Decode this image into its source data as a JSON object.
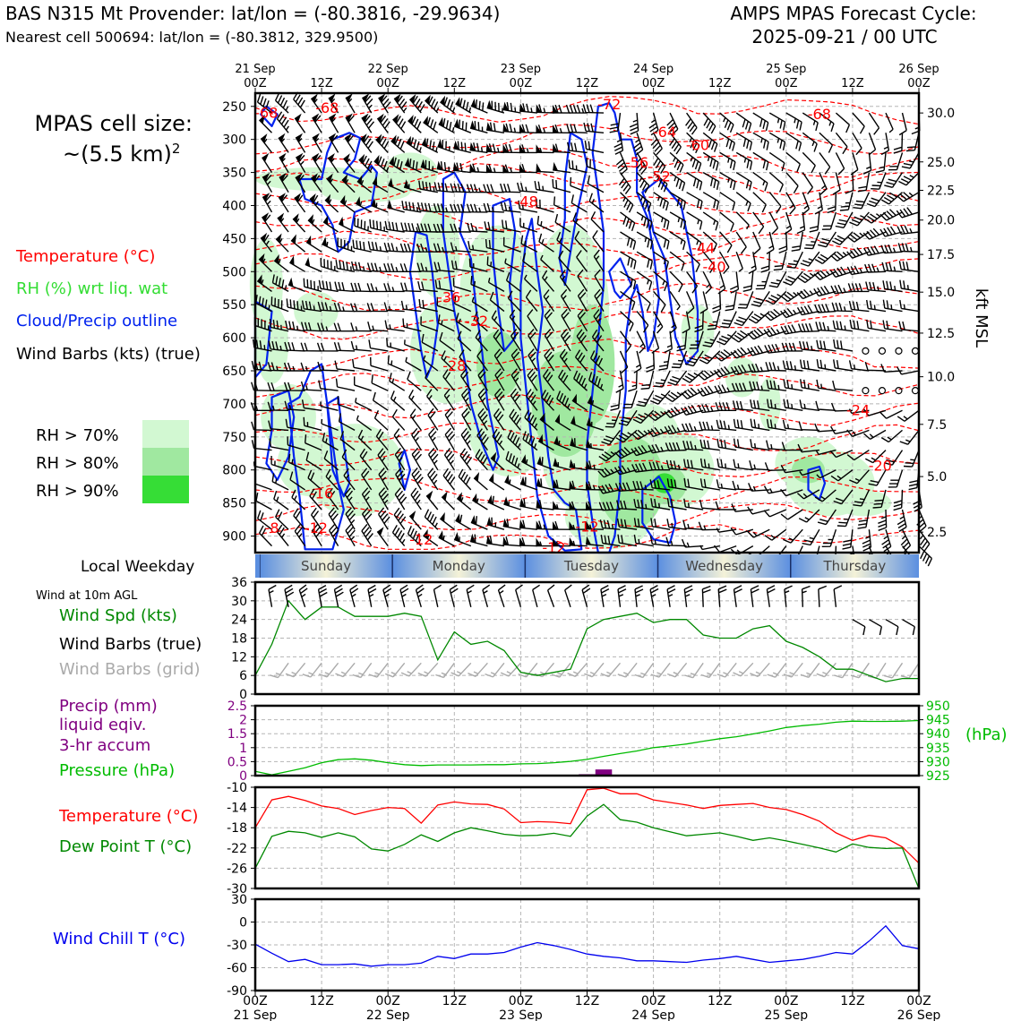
{
  "header": {
    "title_left": "BAS N315 Mt Provender: lat/lon = (-80.3816, -29.9634)",
    "subtitle_left": "Nearest cell 500694: lat/lon = (-80.3812, 329.9500)",
    "title_right_1": "AMPS MPAS Forecast Cycle:",
    "title_right_2": "2025-09-21 / 00 UTC"
  },
  "cell_size": {
    "line1": "MPAS cell size:",
    "line2": "~(5.5 km)",
    "sup": "2"
  },
  "legend_main": {
    "temperature": "Temperature (°C)",
    "rh": "RH (%) wrt liq. wat",
    "cloud": "Cloud/Precip outline",
    "wind": "Wind Barbs (kts) (true)",
    "rh70": "RH > 70%",
    "rh80": "RH > 80%",
    "rh90": "RH > 90%"
  },
  "colors": {
    "temperature": "#ff0000",
    "rh_label": "#33dd33",
    "cloud": "#0022ee",
    "rh70": "#d2f8d2",
    "rh80": "#a0e8a0",
    "rh90": "#36dd36",
    "wind_speed": "#008800",
    "wind_grid": "#aaaaaa",
    "precip": "#800080",
    "pressure": "#00bb00",
    "dewpoint": "#008800",
    "windchill": "#0000ee"
  },
  "time_axis": {
    "top_dates": [
      "21 Sep",
      "22 Sep",
      "23 Sep",
      "24 Sep",
      "25 Sep",
      "26 Sep"
    ],
    "hour_labels": [
      "00Z",
      "12Z",
      "00Z",
      "12Z",
      "00Z",
      "12Z",
      "00Z",
      "12Z",
      "00Z",
      "12Z",
      "00Z"
    ],
    "bottom_dates": [
      "21 Sep",
      "22 Sep",
      "23 Sep",
      "24 Sep",
      "25 Sep",
      "26 Sep"
    ]
  },
  "weekday_bar": {
    "label": "Local Weekday",
    "days": [
      "Sunday",
      "Monday",
      "Tuesday",
      "Wednesday",
      "Thursday"
    ]
  },
  "chart_data": [
    {
      "type": "heatmap",
      "name": "cross-section",
      "yaxis_left": {
        "ticks": [
          250,
          300,
          350,
          400,
          450,
          500,
          550,
          600,
          650,
          700,
          750,
          800,
          850,
          900
        ]
      },
      "yaxis_right": {
        "label": "kft MSL",
        "ticks": [
          "30.0",
          "25.0",
          "22.5",
          "20.0",
          "17.5",
          "15.0",
          "12.5",
          "10.0",
          "7.5",
          "5.0",
          "2.5"
        ],
        "tick_pressure": [
          260,
          334,
          377,
          422,
          474,
          531,
          593,
          659,
          731,
          810,
          894
        ]
      },
      "temperature_labels": [
        {
          "text": "-68",
          "t": 2,
          "p": 259
        },
        {
          "text": "-68",
          "t": 13,
          "p": 252
        },
        {
          "text": "-72",
          "t": 64,
          "p": 246
        },
        {
          "text": "-68",
          "t": 102,
          "p": 261
        },
        {
          "text": "-64",
          "t": 74,
          "p": 288
        },
        {
          "text": "-60",
          "t": 80,
          "p": 308
        },
        {
          "text": "-56",
          "t": 69,
          "p": 334
        },
        {
          "text": "-52",
          "t": 73,
          "p": 355
        },
        {
          "text": "-48",
          "t": 49,
          "p": 393
        },
        {
          "text": "-44",
          "t": 81,
          "p": 464
        },
        {
          "text": "-40",
          "t": 83,
          "p": 492
        },
        {
          "text": "-36",
          "t": 35,
          "p": 538
        },
        {
          "text": "-32",
          "t": 40,
          "p": 574
        },
        {
          "text": "-28",
          "t": 36,
          "p": 642
        },
        {
          "text": "-24",
          "t": 109,
          "p": 709
        },
        {
          "text": "-20",
          "t": 113,
          "p": 793
        },
        {
          "text": "-16",
          "t": 12,
          "p": 835
        },
        {
          "text": "-12",
          "t": 11,
          "p": 887
        },
        {
          "text": "-12",
          "t": 30,
          "p": 905
        },
        {
          "text": "-12",
          "t": 54,
          "p": 917
        },
        {
          "text": "-12",
          "t": 60,
          "p": 885
        },
        {
          "text": "-8",
          "t": 3,
          "p": 887
        }
      ]
    },
    {
      "type": "line",
      "name": "wind",
      "ylim": [
        0,
        36
      ],
      "yticks": [
        0,
        6,
        12,
        18,
        24,
        30,
        36
      ],
      "x": [
        0,
        3,
        6,
        9,
        12,
        15,
        18,
        21,
        24,
        27,
        30,
        33,
        36,
        39,
        42,
        45,
        48,
        51,
        54,
        57,
        60,
        63,
        66,
        69,
        72,
        75,
        78,
        81,
        84,
        87,
        90,
        93,
        96,
        99,
        102,
        105,
        108,
        111,
        114,
        117,
        120
      ],
      "series": [
        {
          "name": "Wind Spd (kts)",
          "values": [
            6,
            16,
            30,
            24,
            28,
            28,
            25,
            25,
            25,
            26,
            25,
            11,
            20,
            16,
            17,
            14,
            7,
            6,
            7,
            8,
            21,
            24,
            25,
            26,
            23,
            24,
            24,
            19,
            18,
            18,
            21,
            22,
            17,
            15,
            12,
            8,
            8,
            6,
            4,
            5,
            5
          ]
        }
      ]
    },
    {
      "type": "bar",
      "name": "precip-pressure",
      "y_left": {
        "ylim": [
          0,
          2.5
        ],
        "ticks": [
          0,
          0.5,
          1.0,
          1.5,
          2.0,
          2.5
        ]
      },
      "y_right": {
        "ylim": [
          925,
          950
        ],
        "ticks": [
          925,
          930,
          935,
          940,
          945,
          950
        ],
        "unit": "(hPa)"
      },
      "precip": {
        "x": [
          63
        ],
        "values": [
          0.22
        ]
      },
      "pressure": {
        "x": [
          0,
          3,
          6,
          9,
          12,
          15,
          18,
          21,
          24,
          27,
          30,
          33,
          36,
          39,
          42,
          45,
          48,
          51,
          54,
          57,
          60,
          63,
          66,
          69,
          72,
          75,
          78,
          81,
          84,
          87,
          90,
          93,
          96,
          99,
          102,
          105,
          108,
          111,
          114,
          117,
          120
        ],
        "values": [
          926.5,
          925.3,
          926.5,
          927.8,
          929.6,
          930.7,
          931.0,
          930.5,
          929.6,
          928.9,
          928.6,
          928.8,
          928.8,
          928.8,
          928.9,
          928.9,
          929.2,
          929.3,
          929.6,
          930.1,
          930.8,
          931.9,
          932.9,
          933.8,
          935.0,
          935.6,
          936.3,
          937.3,
          938.2,
          938.9,
          939.9,
          941.0,
          942.2,
          942.9,
          943.4,
          944.1,
          944.5,
          944.4,
          944.4,
          944.5,
          944.7
        ]
      }
    },
    {
      "type": "line",
      "name": "temperature",
      "ylim": [
        -30,
        -10
      ],
      "yticks": [
        -10,
        -14,
        -18,
        -22,
        -26,
        -30
      ],
      "x": [
        0,
        3,
        6,
        9,
        12,
        15,
        18,
        21,
        24,
        27,
        30,
        33,
        36,
        39,
        42,
        45,
        48,
        51,
        54,
        57,
        60,
        63,
        66,
        69,
        72,
        75,
        78,
        81,
        84,
        87,
        90,
        93,
        96,
        99,
        102,
        105,
        108,
        111,
        114,
        117,
        120
      ],
      "series": [
        {
          "name": "Temperature (°C)",
          "values": [
            -18,
            -12.5,
            -11.8,
            -12.6,
            -13.7,
            -14.2,
            -15.4,
            -14.6,
            -14.0,
            -14.2,
            -17.1,
            -13.5,
            -12.9,
            -13.3,
            -13.4,
            -14.3,
            -17.0,
            -16.8,
            -16.9,
            -17.2,
            -10.5,
            -10.2,
            -11.3,
            -11.3,
            -12.5,
            -13.0,
            -13.5,
            -14.2,
            -13.6,
            -13.4,
            -13.2,
            -14.0,
            -14.4,
            -15.4,
            -16.7,
            -19.0,
            -20.5,
            -19.5,
            -20.0,
            -21.8,
            -25.0
          ]
        },
        {
          "name": "Dew Point T (°C)",
          "values": [
            -26,
            -19.7,
            -18.7,
            -19.0,
            -19.9,
            -19.0,
            -19.8,
            -22.2,
            -22.6,
            -21.3,
            -19.4,
            -20.7,
            -19.0,
            -18.0,
            -18.6,
            -19.3,
            -19.6,
            -19.5,
            -19.1,
            -19.7,
            -15.7,
            -13.4,
            -16.4,
            -16.9,
            -18.0,
            -18.8,
            -19.6,
            -19.3,
            -19.0,
            -19.7,
            -20.5,
            -20.0,
            -20.6,
            -21.3,
            -22.0,
            -22.8,
            -21.2,
            -21.9,
            -22.1,
            -22.0,
            -30.0
          ]
        }
      ]
    },
    {
      "type": "line",
      "name": "windchill",
      "ylim": [
        -90,
        30
      ],
      "yticks": [
        30,
        0,
        -30,
        -60,
        -90
      ],
      "x": [
        0,
        3,
        6,
        9,
        12,
        15,
        18,
        21,
        24,
        27,
        30,
        33,
        36,
        39,
        42,
        45,
        48,
        51,
        54,
        57,
        60,
        63,
        66,
        69,
        72,
        75,
        78,
        81,
        84,
        87,
        90,
        93,
        96,
        99,
        102,
        105,
        108,
        111,
        114,
        117,
        120
      ],
      "series": [
        {
          "name": "Wind Chill T (°C)",
          "values": [
            -29,
            -41,
            -52,
            -49,
            -56,
            -56,
            -55,
            -58,
            -56,
            -56,
            -54,
            -45,
            -48,
            -42,
            -42,
            -40,
            -33,
            -27,
            -31,
            -36,
            -42,
            -45,
            -47,
            -51,
            -51,
            -52,
            -53,
            -50,
            -48,
            -45,
            -49,
            -53,
            -51,
            -49,
            -45,
            -40,
            -42,
            -25,
            -5,
            -31,
            -35
          ]
        }
      ]
    }
  ],
  "panel_labels": {
    "wind_10m": "Wind at 10m AGL",
    "wind_speed": "Wind Spd (kts)",
    "wind_barbs_true": "Wind Barbs (true)",
    "wind_barbs_grid": "Wind Barbs (grid)",
    "precip_1": "Precip (mm)",
    "precip_2": "liquid eqiv.",
    "precip_3": "3-hr accum",
    "pressure": "Pressure (hPa)",
    "temperature": "Temperature (°C)",
    "dewpoint": "Dew Point T (°C)",
    "windchill": "Wind Chill T (°C)"
  }
}
